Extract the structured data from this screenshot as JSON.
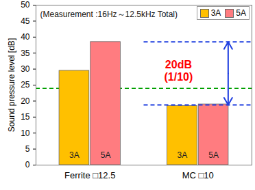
{
  "chart_data": {
    "type": "bar",
    "note": "(Measurement :16Hz～12.5kHz Total)",
    "y_label": "Sound pressure level [dB]",
    "categories": [
      "Ferrite □12.5",
      "MC □10"
    ],
    "series": [
      {
        "name": "3A",
        "color": "#FFC000",
        "values": [
          29.5,
          18.5
        ]
      },
      {
        "name": "5A",
        "color": "#FF7C80",
        "values": [
          38.5,
          19
        ]
      }
    ],
    "ylim": [
      0,
      50
    ],
    "yticks": [
      0,
      5,
      10,
      15,
      20,
      25,
      30,
      35,
      40,
      45,
      50
    ],
    "grid": false,
    "legend": "upper right",
    "hlines": [
      {
        "value": 24,
        "color": "#00A000",
        "line_style": "dashed"
      }
    ],
    "arrow": {
      "from": 18.8,
      "to": 38.5,
      "color": "#1F3FE0",
      "line_style": "dashed"
    },
    "annotation": {
      "text": [
        "20dB",
        "(1/10)"
      ],
      "color": "#FF0000"
    }
  }
}
